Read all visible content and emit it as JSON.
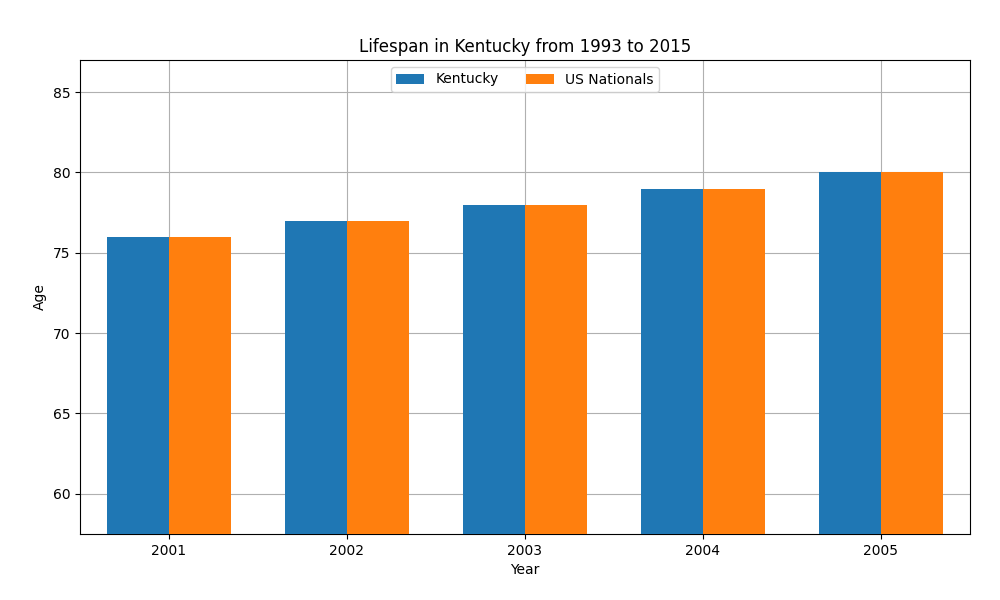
{
  "chart_data": {
    "type": "bar",
    "title": "Lifespan in Kentucky from 1993 to 2015",
    "x_label": "Year",
    "y_label": "Age",
    "categories": [
      "2001",
      "2002",
      "2003",
      "2004",
      "2005"
    ],
    "series": [
      {
        "name": "Kentucky",
        "values": [
          76,
          77,
          78,
          79,
          80
        ]
      },
      {
        "name": "US Nationals",
        "values": [
          76,
          77,
          78,
          79,
          80
        ]
      }
    ],
    "ylim": [
      57.5,
      87
    ],
    "yticks": [
      60,
      65,
      70,
      75,
      80,
      85
    ],
    "grid": true,
    "legend": "upper center"
  }
}
